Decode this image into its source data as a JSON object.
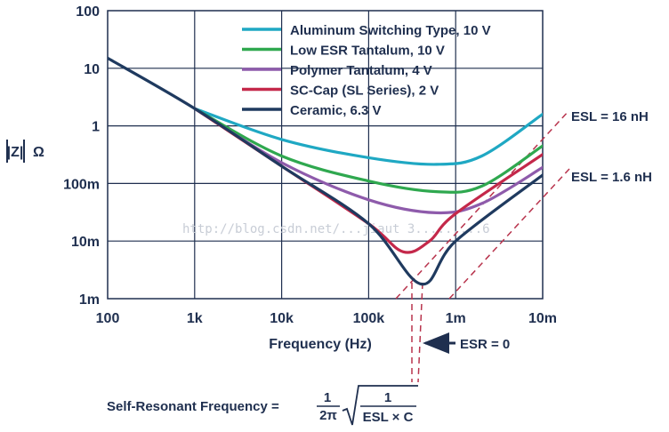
{
  "watermark": "http://blog.csdn.net/...jiaut 3.........6",
  "chart_data": {
    "type": "line",
    "log_x": true,
    "log_y": true,
    "xlim": [
      100,
      10000000
    ],
    "ylim": [
      1,
      100000
    ],
    "x_ticks": [
      100,
      1000,
      10000,
      100000,
      1000000,
      10000000
    ],
    "x_tick_labels": [
      "100",
      "1k",
      "10k",
      "100k",
      "1m",
      "10m"
    ],
    "y_ticks": [
      1,
      10,
      100,
      1000,
      10000,
      100000
    ],
    "y_tick_labels": [
      "1m",
      "10m",
      "100m",
      "1",
      "10",
      "100"
    ],
    "xlabel": "Frequency (Hz)",
    "ylabel_parts": [
      "|Z|",
      "Ω"
    ],
    "grid": true,
    "legend_position": "top-right",
    "series": [
      {
        "name": "Aluminum Switching Type, 10 V",
        "color": "#1fa8c3",
        "x": [
          1000,
          10000,
          100000,
          600000,
          2000000,
          10000000
        ],
        "y": [
          2000,
          580,
          280,
          215,
          300,
          1600
        ]
      },
      {
        "name": "Low ESR Tantalum, 10 V",
        "color": "#2fa84f",
        "x": [
          1000,
          10000,
          100000,
          600000,
          2000000,
          10000000
        ],
        "y": [
          2000,
          300,
          110,
          72,
          90,
          450
        ]
      },
      {
        "name": "Polymer Tantalum, 4 V",
        "color": "#8e5bab",
        "x": [
          1000,
          10000,
          100000,
          600000,
          2000000,
          10000000
        ],
        "y": [
          2000,
          230,
          52,
          31,
          45,
          190
        ]
      },
      {
        "name": "SC-Cap (SL Series), 2 V",
        "color": "#c4284a",
        "x": [
          1000,
          10000,
          100000,
          250000,
          500000,
          1000000,
          10000000
        ],
        "y": [
          2000,
          200,
          20,
          6.5,
          10,
          30,
          320
        ]
      },
      {
        "name": "Ceramic, 6.3 V",
        "color": "#1f3a5f",
        "x": [
          100,
          1000,
          10000,
          100000,
          400000,
          1000000,
          10000000
        ],
        "y": [
          15000,
          2000,
          200,
          20,
          1.8,
          10,
          140
        ]
      }
    ],
    "annotations": [
      {
        "text": "ESL = 16 nH"
      },
      {
        "text": "ESL = 1.6 nH"
      },
      {
        "text": "ESR = 0"
      },
      {
        "text": "Self-Resonant Frequency ="
      }
    ],
    "formula": {
      "numerator_1": "1",
      "denominator_1": "2π",
      "numerator_2": "1",
      "denominator_2": "ESL × C"
    }
  }
}
